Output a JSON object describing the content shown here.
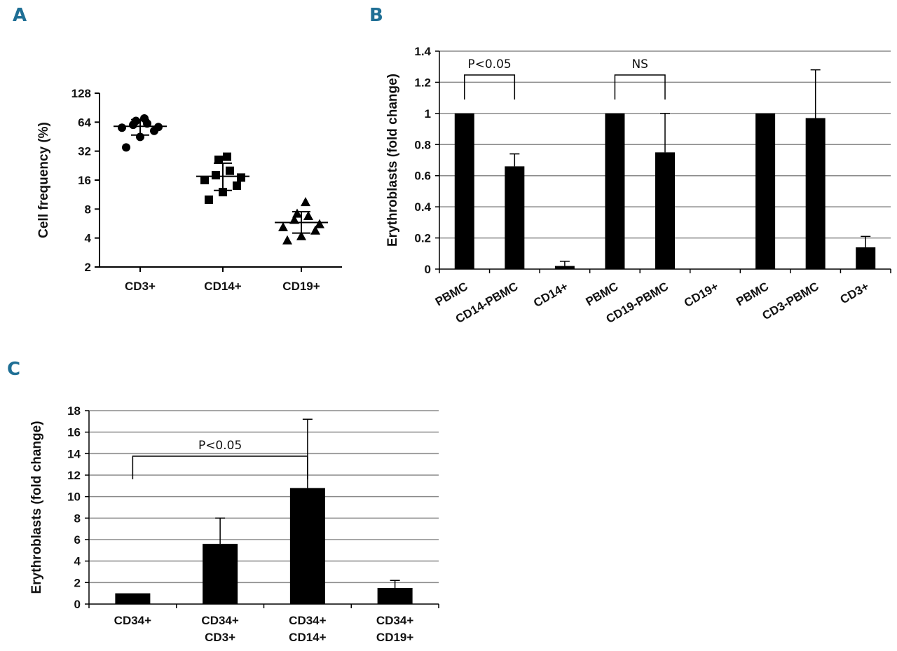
{
  "panels": {
    "a": "A",
    "b": "B",
    "c": "C"
  },
  "chart_data": [
    {
      "panel": "A",
      "type": "scatter",
      "scale": "log2",
      "ylabel": "Cell frequency (%)",
      "xlabel": "",
      "yticks": [
        2,
        4,
        8,
        16,
        32,
        64,
        128
      ],
      "ylim": [
        2,
        128
      ],
      "grid": false,
      "categories": [
        "CD3+",
        "CD14+",
        "CD19+"
      ],
      "groups": [
        {
          "category": "CD3+",
          "marker": "circle",
          "points": [
            35,
            45,
            52,
            56,
            57,
            60,
            62,
            66,
            70
          ],
          "mean": 58,
          "sd_low": 47,
          "sd_high": 68
        },
        {
          "category": "CD14+",
          "marker": "square",
          "points": [
            10,
            12,
            14,
            16,
            17,
            18,
            20,
            26,
            28
          ],
          "mean": 17.5,
          "sd_low": 12.5,
          "sd_high": 24
        },
        {
          "category": "CD19+",
          "marker": "triangle",
          "points": [
            3.8,
            4.2,
            4.8,
            5.2,
            5.6,
            6.2,
            6.8,
            7.2,
            9.5
          ],
          "mean": 5.8,
          "sd_low": 4.5,
          "sd_high": 7.5
        }
      ]
    },
    {
      "panel": "B",
      "type": "bar",
      "ylabel": "Erythroblasts  (fold change)",
      "xlabel": "",
      "ylim": [
        0,
        1.4
      ],
      "yticks": [
        0,
        0.2,
        0.4,
        0.6,
        0.8,
        1,
        1.2,
        1.4
      ],
      "grid": true,
      "categories": [
        "PBMC",
        "CD14-PBMC",
        "CD14+",
        "PBMC",
        "CD19-PBMC",
        "CD19+",
        "PBMC",
        "CD3-PBMC",
        "CD3+"
      ],
      "values": [
        1.0,
        0.66,
        0.02,
        1.0,
        0.75,
        0,
        1.0,
        0.97,
        0.14
      ],
      "errors": [
        0,
        0.08,
        0.03,
        0,
        0.25,
        0,
        0,
        0.31,
        0.07
      ],
      "annotations": [
        {
          "text": "P<0.05",
          "from": 0,
          "to": 1
        },
        {
          "text": "NS",
          "from": 3,
          "to": 4
        }
      ]
    },
    {
      "panel": "C",
      "type": "bar",
      "ylabel": "Erythroblasts  (fold change)",
      "xlabel": "",
      "ylim": [
        0,
        18
      ],
      "yticks": [
        0,
        2,
        4,
        6,
        8,
        10,
        12,
        14,
        16,
        18
      ],
      "grid": true,
      "categories": [
        [
          "CD34+"
        ],
        [
          "CD34+",
          "CD3+"
        ],
        [
          "CD34+",
          "CD14+"
        ],
        [
          "CD34+",
          "CD19+"
        ]
      ],
      "values": [
        1.0,
        5.6,
        10.8,
        1.5
      ],
      "errors": [
        0,
        2.4,
        6.4,
        0.7
      ],
      "annotations": [
        {
          "text": "P<0.05",
          "from": 0,
          "to": 2
        }
      ]
    }
  ]
}
